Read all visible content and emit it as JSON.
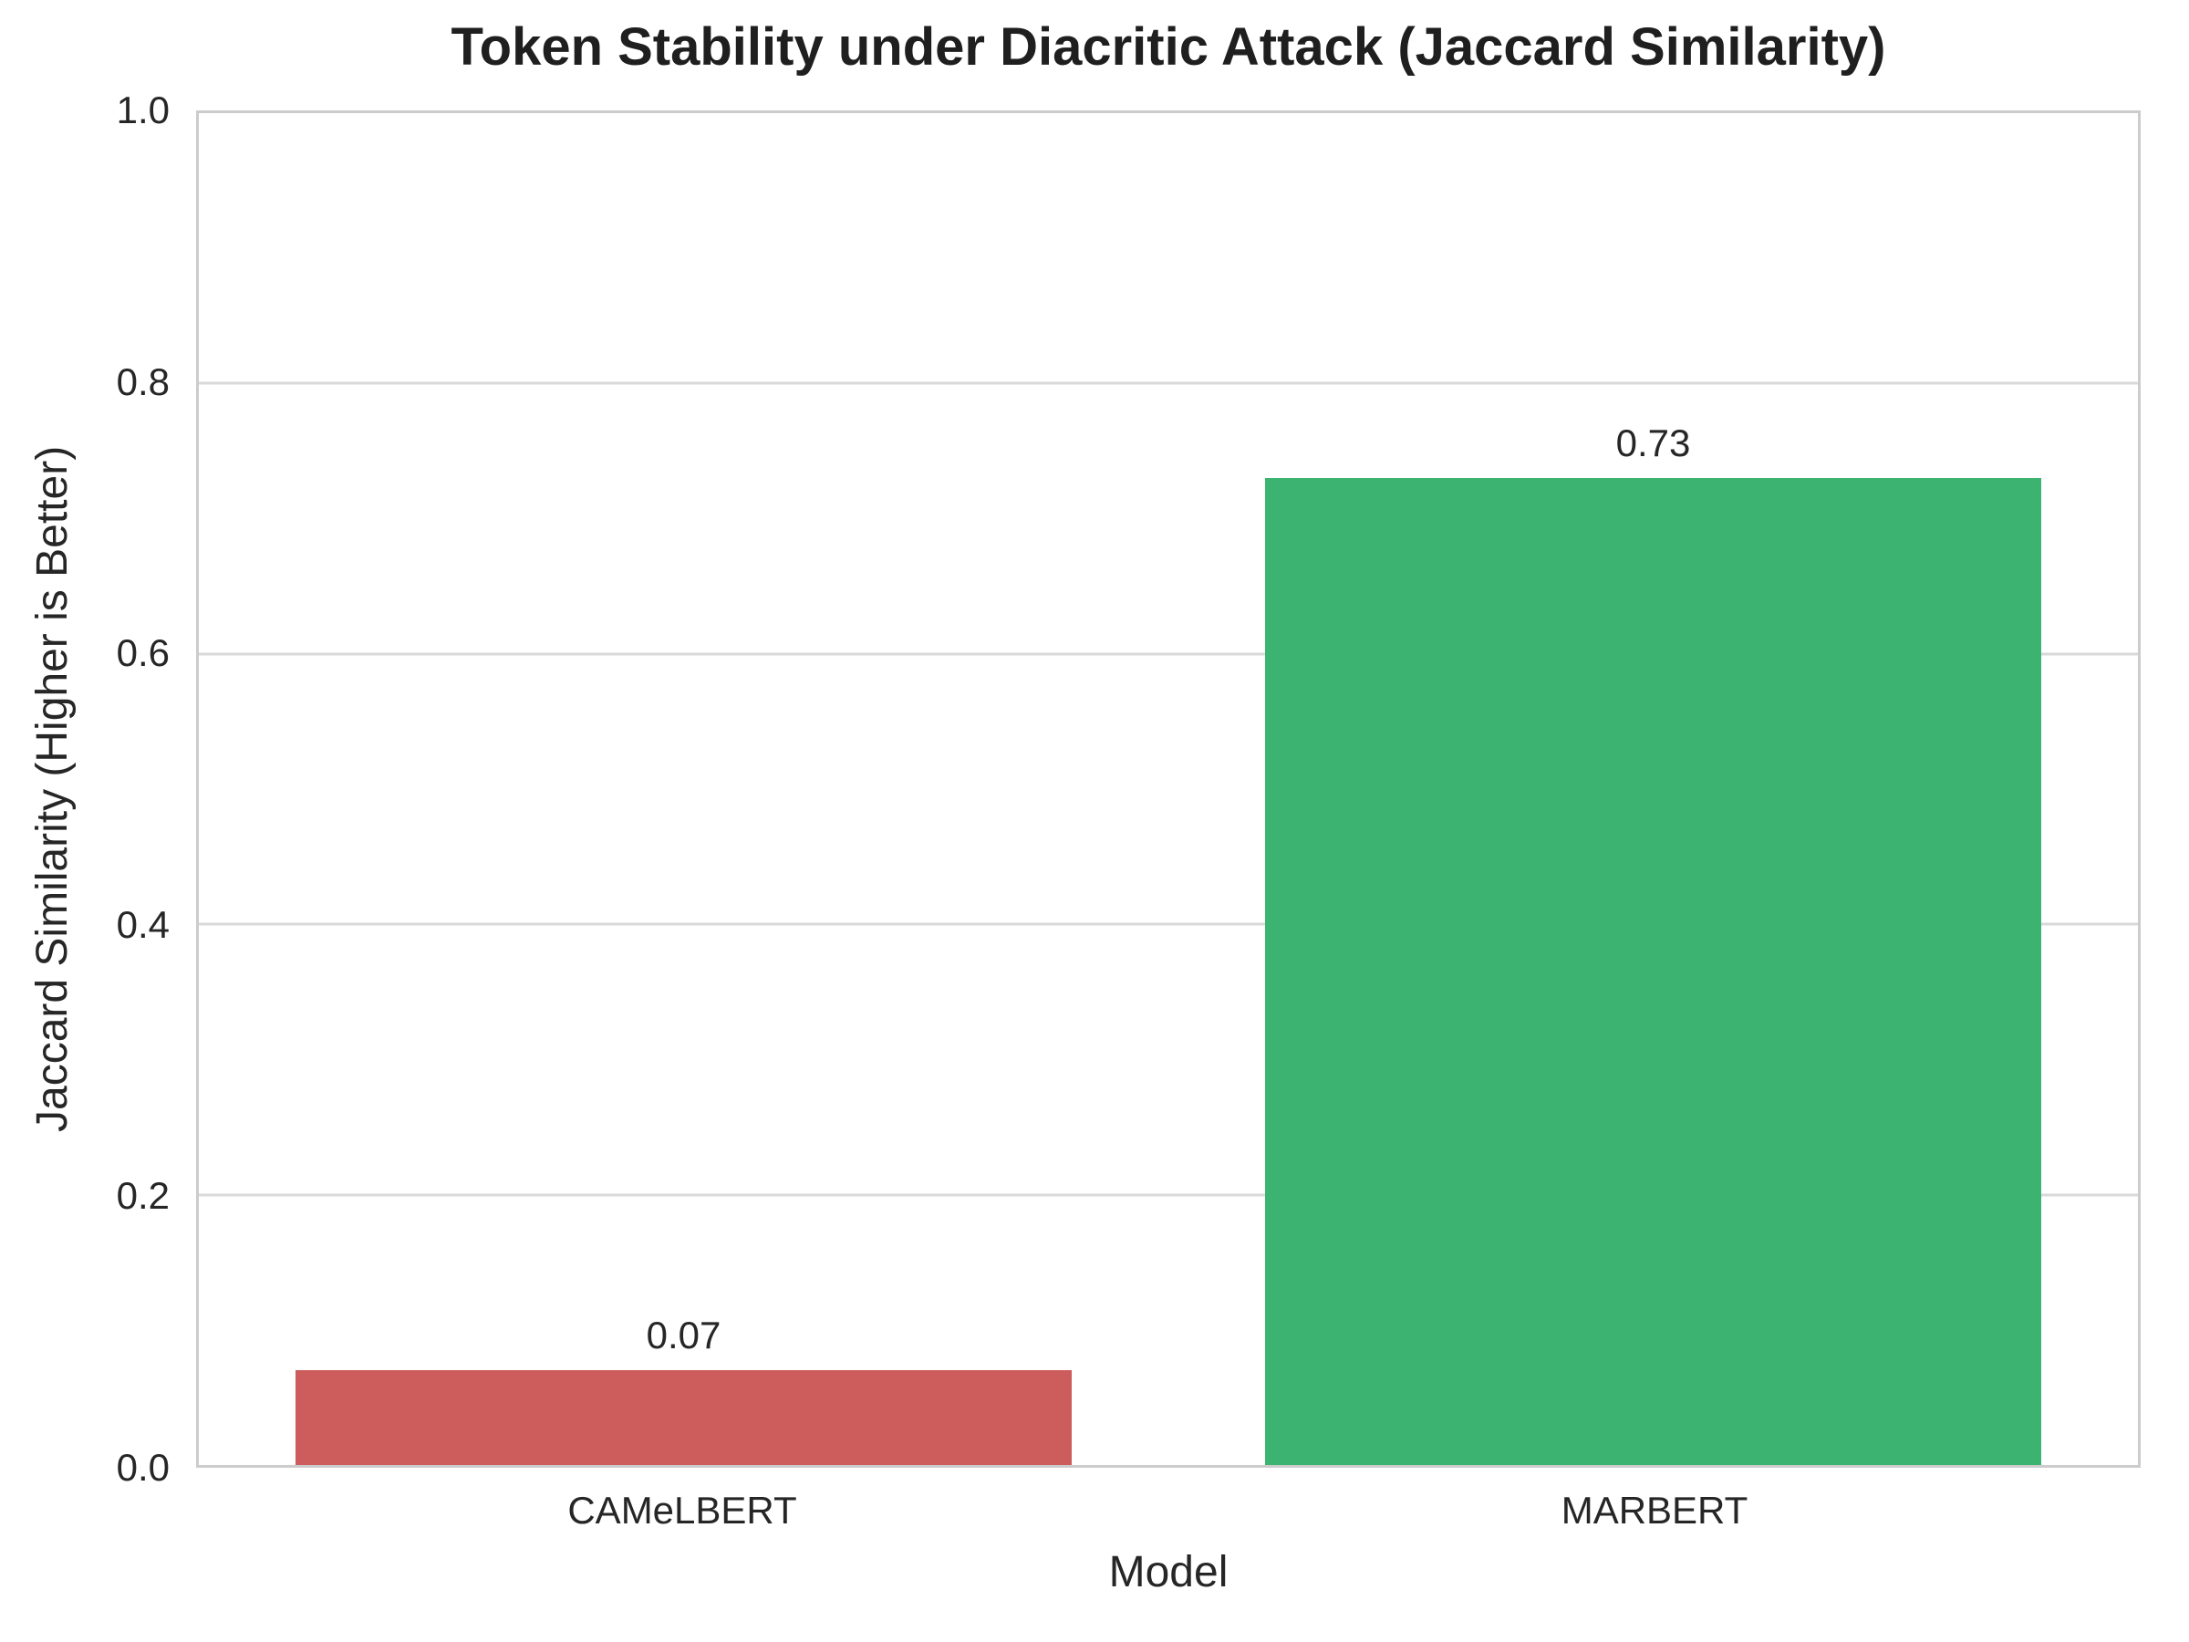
{
  "chart_data": {
    "type": "bar",
    "title": "Token Stability under Diacritic Attack (Jaccard Similarity)",
    "xlabel": "Model",
    "ylabel": "Jaccard Similarity (Higher is Better)",
    "categories": [
      "CAMeLBERT",
      "MARBERT"
    ],
    "values": [
      0.07,
      0.73
    ],
    "value_labels": [
      "0.07",
      "0.73"
    ],
    "bar_colors": [
      "#cd5c5c",
      "#3cb371"
    ],
    "ylim": [
      0.0,
      1.0
    ],
    "yticks": [
      0.0,
      0.2,
      0.4,
      0.6,
      0.8,
      1.0
    ],
    "ytick_labels": [
      "0.0",
      "0.2",
      "0.4",
      "0.6",
      "0.8",
      "1.0"
    ],
    "grid": "horizontal",
    "grid_color": "#d9d9d9",
    "spine_color": "#cccccc",
    "text_color": "#262626",
    "legend": "none",
    "bar_width_fraction": 0.8
  }
}
